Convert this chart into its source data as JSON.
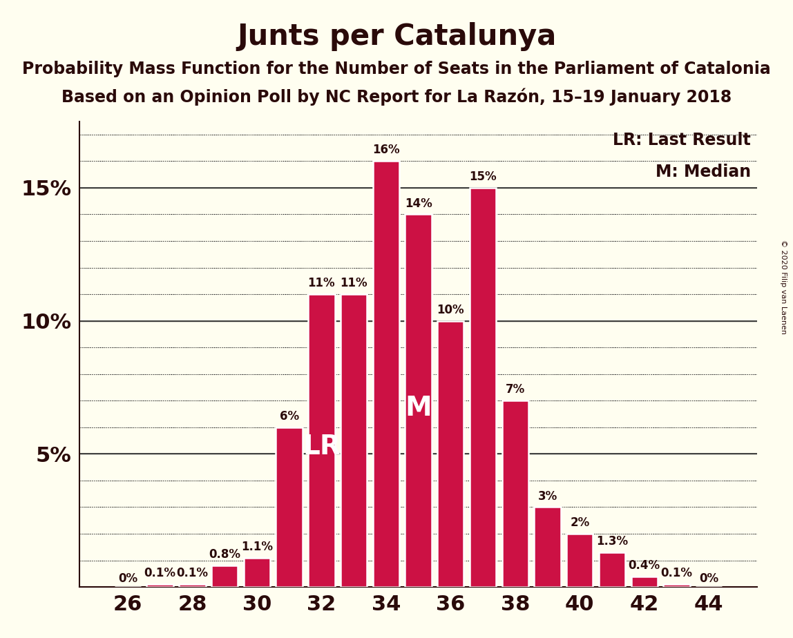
{
  "title": "Junts per Catalunya",
  "subtitle1": "Probability Mass Function for the Number of Seats in the Parliament of Catalonia",
  "subtitle2": "Based on an Opinion Poll by NC Report for La Razón, 15–19 January 2018",
  "copyright": "© 2020 Filip van Laenen",
  "legend_lr": "LR: Last Result",
  "legend_m": "M: Median",
  "seats": [
    26,
    27,
    28,
    29,
    30,
    31,
    32,
    33,
    34,
    35,
    36,
    37,
    38,
    39,
    40,
    41,
    42,
    43,
    44
  ],
  "values": [
    0.0,
    0.1,
    0.1,
    0.8,
    1.1,
    6.0,
    11.0,
    11.0,
    16.0,
    14.0,
    10.0,
    15.0,
    7.0,
    3.0,
    2.0,
    1.3,
    0.4,
    0.1,
    0.0
  ],
  "labels": [
    "0%",
    "0.1%",
    "0.1%",
    "0.8%",
    "1.1%",
    "6%",
    "11%",
    "11%",
    "16%",
    "14%",
    "10%",
    "15%",
    "7%",
    "3%",
    "2%",
    "1.3%",
    "0.4%",
    "0.1%",
    "0%"
  ],
  "bar_color": "#CC1144",
  "background_color": "#FFFEF0",
  "lr_seat": 32,
  "median_seat": 35,
  "ylim": [
    0,
    17.5
  ],
  "yticks_major": [
    0,
    5,
    10,
    15
  ],
  "ytick_labels": [
    "",
    "5%",
    "10%",
    "15%"
  ],
  "grid_color": "#333333",
  "text_color": "#2a0a0a",
  "title_fontsize": 30,
  "subtitle_fontsize": 17,
  "label_fontsize": 12,
  "axis_fontsize": 22,
  "legend_fontsize": 17,
  "lr_label_fontsize": 28,
  "m_label_fontsize": 28
}
